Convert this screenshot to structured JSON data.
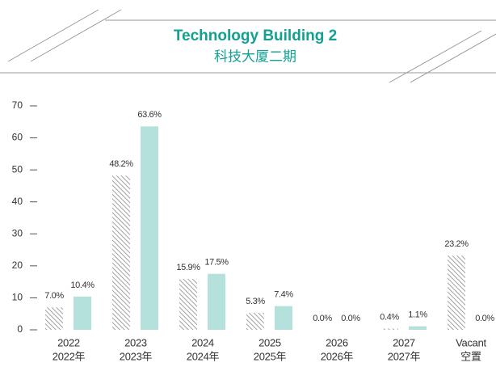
{
  "chart_data": {
    "type": "bar",
    "title": "Technology Building 2",
    "subtitle": "科技大厦二期",
    "categories": [
      [
        "2022",
        "2022年"
      ],
      [
        "2023",
        "2023年"
      ],
      [
        "2024",
        "2024年"
      ],
      [
        "2025",
        "2025年"
      ],
      [
        "2026",
        "2026年"
      ],
      [
        "2027",
        "2027年"
      ],
      [
        "Vacant",
        "空置"
      ]
    ],
    "series": [
      {
        "color": "#9a9a9a",
        "pattern": "hatch",
        "values": [
          7.0,
          48.2,
          15.9,
          5.3,
          0.0,
          0.4,
          23.2
        ],
        "value_labels": [
          "7.0%",
          "48.2%",
          "15.9%",
          "5.3%",
          "0.0%",
          "0.4%",
          "23.2%"
        ]
      },
      {
        "color": "#b5e1dd",
        "values": [
          10.4,
          63.6,
          17.5,
          7.4,
          0.0,
          1.1,
          0.0
        ],
        "value_labels": [
          "10.4%",
          "63.6%",
          "17.5%",
          "7.4%",
          "0.0%",
          "1.1%",
          "0.0%"
        ]
      }
    ],
    "ylim": [
      0,
      70
    ],
    "yticks": [
      0,
      10,
      20,
      30,
      40,
      50,
      60,
      70
    ]
  }
}
